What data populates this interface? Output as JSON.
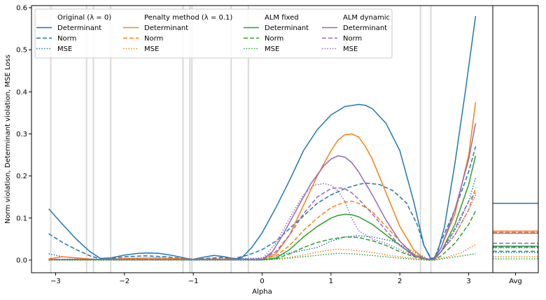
{
  "chart_data": {
    "type": "line",
    "xlabel": "Alpha",
    "ylabel": "Norm violation, Determinant violation, MSE Loss",
    "xlim": [
      -3.35,
      3.35
    ],
    "ylim": [
      -0.03,
      0.605
    ],
    "xticks": [
      -3,
      -2,
      -1,
      0,
      1,
      2,
      3
    ],
    "xtick_labels": [
      "−3",
      "−2",
      "−1",
      "0",
      "1",
      "2",
      "3"
    ],
    "yticks": [
      0.0,
      0.1,
      0.2,
      0.3,
      0.4,
      0.5,
      0.6
    ],
    "ytick_labels": [
      "0.0",
      "0.1",
      "0.2",
      "0.3",
      "0.4",
      "0.5",
      "0.6"
    ],
    "avg_panel_label": "Avg",
    "grey_vlines": [
      -3.07,
      -2.55,
      -2.45,
      -2.2,
      -1.15,
      -1.05,
      -1.02,
      -0.45,
      -0.2,
      2.3,
      2.45
    ],
    "legend": {
      "placement": "top-left",
      "groups": [
        {
          "title": "Original (λ = 0)",
          "color": "#1f77b4",
          "entries": [
            {
              "label": "Determinant",
              "style": "solid"
            },
            {
              "label": "Norm",
              "style": "dashed"
            },
            {
              "label": "MSE",
              "style": "dotted"
            }
          ]
        },
        {
          "title": "Penalty method (λ = 0.1)",
          "color": "#ff7f0e",
          "entries": [
            {
              "label": "Determinant",
              "style": "solid"
            },
            {
              "label": "Norm",
              "style": "dashed"
            },
            {
              "label": "MSE",
              "style": "dotted"
            }
          ]
        },
        {
          "title": "ALM fixed",
          "color": "#2ca02c",
          "entries": [
            {
              "label": "Determinant",
              "style": "solid"
            },
            {
              "label": "Norm",
              "style": "dashed"
            },
            {
              "label": "MSE",
              "style": "dotted"
            }
          ]
        },
        {
          "title": "ALM dynamic",
          "color": "#9467bd",
          "entries": [
            {
              "label": "Determinant",
              "style": "solid"
            },
            {
              "label": "Norm",
              "style": "dashed"
            },
            {
              "label": "MSE",
              "style": "dotted"
            }
          ]
        }
      ]
    },
    "series": [
      {
        "group": "Original (λ = 0)",
        "metric": "Determinant",
        "color": "#1f77b4",
        "style": "solid",
        "avg": 0.135,
        "x": [
          -3.1,
          -2.9,
          -2.7,
          -2.5,
          -2.35,
          -2.2,
          -2.0,
          -1.8,
          -1.65,
          -1.5,
          -1.3,
          -1.1,
          -1.0,
          -0.85,
          -0.7,
          -0.55,
          -0.4,
          -0.3,
          -0.15,
          0.0,
          0.2,
          0.4,
          0.6,
          0.8,
          1.0,
          1.2,
          1.4,
          1.5,
          1.6,
          1.8,
          2.0,
          2.2,
          2.35,
          2.45,
          2.5,
          2.55,
          2.65,
          2.8,
          2.95,
          3.1
        ],
        "y": [
          0.122,
          0.085,
          0.05,
          0.02,
          0.004,
          0.005,
          0.012,
          0.016,
          0.017,
          0.016,
          0.011,
          0.004,
          0.002,
          0.007,
          0.011,
          0.008,
          0.003,
          0.005,
          0.03,
          0.065,
          0.125,
          0.19,
          0.26,
          0.31,
          0.345,
          0.365,
          0.37,
          0.368,
          0.36,
          0.325,
          0.26,
          0.14,
          0.035,
          0.003,
          0.006,
          0.02,
          0.08,
          0.23,
          0.4,
          0.58
        ]
      },
      {
        "group": "Original (λ = 0)",
        "metric": "Norm",
        "color": "#1f77b4",
        "style": "dashed",
        "avg": 0.031,
        "x": [
          -3.1,
          -2.9,
          -2.7,
          -2.5,
          -2.35,
          -2.2,
          -2.0,
          -1.7,
          -1.4,
          -1.1,
          -1.0,
          -0.8,
          -0.6,
          -0.4,
          -0.2,
          0.0,
          0.2,
          0.4,
          0.6,
          0.8,
          1.0,
          1.2,
          1.4,
          1.5,
          1.7,
          1.9,
          2.1,
          2.25,
          2.35,
          2.45,
          2.5,
          2.6,
          2.8,
          3.0,
          3.1
        ],
        "y": [
          0.063,
          0.042,
          0.025,
          0.01,
          0.003,
          0.004,
          0.008,
          0.01,
          0.008,
          0.003,
          0.002,
          0.004,
          0.006,
          0.004,
          0.012,
          0.025,
          0.045,
          0.075,
          0.105,
          0.135,
          0.155,
          0.17,
          0.18,
          0.183,
          0.18,
          0.165,
          0.135,
          0.085,
          0.035,
          0.005,
          0.004,
          0.045,
          0.12,
          0.21,
          0.27
        ]
      },
      {
        "group": "Original (λ = 0)",
        "metric": "MSE",
        "color": "#1f77b4",
        "style": "dotted",
        "avg": 0.018,
        "x": [
          -3.1,
          -2.9,
          -2.6,
          -2.35,
          -2.0,
          -1.5,
          -1.0,
          -0.5,
          0.0,
          0.2,
          0.5,
          0.8,
          1.0,
          1.2,
          1.4,
          1.6,
          1.9,
          2.2,
          2.4,
          2.5,
          2.65,
          2.85,
          3.0,
          3.1
        ],
        "y": [
          0.015,
          0.008,
          0.003,
          0.001,
          0.002,
          0.002,
          0.001,
          0.002,
          0.005,
          0.01,
          0.02,
          0.03,
          0.045,
          0.055,
          0.058,
          0.055,
          0.045,
          0.02,
          0.003,
          0.003,
          0.03,
          0.085,
          0.14,
          0.195
        ]
      },
      {
        "group": "Penalty method (λ = 0.1)",
        "metric": "Determinant",
        "color": "#ff7f0e",
        "style": "solid",
        "avg": 0.069,
        "x": [
          -3.1,
          -2.9,
          -2.6,
          -2.35,
          -2.0,
          -1.5,
          -1.0,
          -0.5,
          -0.2,
          0.0,
          0.2,
          0.4,
          0.6,
          0.8,
          1.0,
          1.1,
          1.2,
          1.3,
          1.4,
          1.5,
          1.6,
          1.8,
          2.0,
          2.2,
          2.35,
          2.45,
          2.5,
          2.6,
          2.8,
          3.0,
          3.1
        ],
        "y": [
          0.003,
          0.008,
          0.004,
          0.001,
          0.004,
          0.005,
          0.002,
          0.003,
          0.001,
          0.002,
          0.015,
          0.06,
          0.13,
          0.2,
          0.26,
          0.285,
          0.298,
          0.3,
          0.293,
          0.27,
          0.24,
          0.16,
          0.08,
          0.025,
          0.004,
          0.001,
          0.003,
          0.03,
          0.11,
          0.25,
          0.375
        ]
      },
      {
        "group": "Penalty method (λ = 0.1)",
        "metric": "Norm",
        "color": "#ff7f0e",
        "style": "dashed",
        "avg": 0.066,
        "x": [
          -3.1,
          -2.9,
          -2.5,
          -2.0,
          -1.5,
          -1.0,
          -0.5,
          0.0,
          0.2,
          0.4,
          0.6,
          0.8,
          1.0,
          1.2,
          1.3,
          1.4,
          1.6,
          1.8,
          2.0,
          2.2,
          2.4,
          2.5,
          2.6,
          2.8,
          3.0,
          3.1
        ],
        "y": [
          0.001,
          0.002,
          0.001,
          0.002,
          0.002,
          0.001,
          0.002,
          0.002,
          0.01,
          0.035,
          0.07,
          0.1,
          0.125,
          0.138,
          0.14,
          0.135,
          0.115,
          0.08,
          0.045,
          0.015,
          0.002,
          0.002,
          0.02,
          0.06,
          0.12,
          0.172
        ]
      },
      {
        "group": "Penalty method (λ = 0.1)",
        "metric": "MSE",
        "color": "#ff7f0e",
        "style": "dotted",
        "avg": 0.008,
        "x": [
          -3.1,
          -2.5,
          -2.0,
          -1.5,
          -1.0,
          -0.5,
          0.0,
          0.3,
          0.6,
          0.9,
          1.1,
          1.3,
          1.6,
          1.9,
          2.2,
          2.4,
          2.5,
          2.7,
          2.9,
          3.1
        ],
        "y": [
          0.001,
          0.001,
          0.001,
          0.001,
          0.001,
          0.001,
          0.001,
          0.004,
          0.012,
          0.022,
          0.026,
          0.024,
          0.018,
          0.01,
          0.004,
          0.001,
          0.001,
          0.008,
          0.018,
          0.037
        ]
      },
      {
        "group": "ALM fixed",
        "metric": "Determinant",
        "color": "#2ca02c",
        "style": "solid",
        "avg": 0.033,
        "x": [
          -3.1,
          -2.5,
          -2.0,
          -1.5,
          -1.0,
          -0.5,
          0.0,
          0.2,
          0.4,
          0.6,
          0.8,
          1.0,
          1.1,
          1.2,
          1.3,
          1.4,
          1.6,
          1.8,
          2.0,
          2.2,
          2.4,
          2.5,
          2.6,
          2.8,
          3.0,
          3.1
        ],
        "y": [
          0.001,
          0.001,
          0.001,
          0.001,
          0.001,
          0.001,
          0.001,
          0.005,
          0.025,
          0.055,
          0.08,
          0.1,
          0.106,
          0.109,
          0.108,
          0.103,
          0.085,
          0.06,
          0.035,
          0.012,
          0.002,
          0.001,
          0.02,
          0.085,
          0.18,
          0.248
        ]
      },
      {
        "group": "ALM fixed",
        "metric": "Norm",
        "color": "#2ca02c",
        "style": "dashed",
        "avg": 0.021,
        "x": [
          -3.1,
          -2.5,
          -2.0,
          -1.5,
          -1.0,
          -0.5,
          0.0,
          0.2,
          0.4,
          0.6,
          0.8,
          1.0,
          1.2,
          1.4,
          1.6,
          1.8,
          2.0,
          2.2,
          2.4,
          2.5,
          2.6,
          2.8,
          3.0,
          3.1
        ],
        "y": [
          0.001,
          0.001,
          0.001,
          0.001,
          0.001,
          0.001,
          0.001,
          0.003,
          0.015,
          0.03,
          0.042,
          0.05,
          0.055,
          0.054,
          0.046,
          0.035,
          0.02,
          0.008,
          0.001,
          0.001,
          0.01,
          0.04,
          0.085,
          0.117
        ]
      },
      {
        "group": "ALM fixed",
        "metric": "MSE",
        "color": "#2ca02c",
        "style": "dotted",
        "avg": 0.003,
        "x": [
          -3.1,
          -2.5,
          -2.0,
          -1.5,
          -1.0,
          -0.5,
          0.0,
          0.3,
          0.6,
          0.9,
          1.1,
          1.3,
          1.6,
          1.9,
          2.2,
          2.4,
          2.5,
          2.7,
          2.9,
          3.1
        ],
        "y": [
          0.0,
          0.0,
          0.0,
          0.0,
          0.0,
          0.0,
          0.0,
          0.003,
          0.008,
          0.013,
          0.016,
          0.015,
          0.011,
          0.006,
          0.002,
          0.0,
          0.0,
          0.005,
          0.01,
          0.015
        ]
      },
      {
        "group": "ALM dynamic",
        "metric": "Determinant",
        "color": "#9467bd",
        "style": "solid",
        "avg": 0.064,
        "x": [
          -3.1,
          -2.5,
          -2.0,
          -1.5,
          -1.0,
          -0.5,
          0.0,
          0.15,
          0.3,
          0.5,
          0.7,
          0.9,
          1.0,
          1.1,
          1.2,
          1.3,
          1.4,
          1.6,
          1.8,
          2.0,
          2.2,
          2.4,
          2.5,
          2.6,
          2.8,
          3.0,
          3.1
        ],
        "y": [
          0.001,
          0.002,
          0.001,
          0.001,
          0.001,
          0.001,
          0.001,
          0.02,
          0.06,
          0.12,
          0.18,
          0.225,
          0.24,
          0.248,
          0.245,
          0.232,
          0.21,
          0.155,
          0.095,
          0.045,
          0.012,
          0.002,
          0.001,
          0.03,
          0.12,
          0.24,
          0.325
        ]
      },
      {
        "group": "ALM dynamic",
        "metric": "Norm",
        "color": "#9467bd",
        "style": "dashed",
        "avg": 0.04,
        "x": [
          -3.1,
          -2.5,
          -2.0,
          -1.5,
          -1.0,
          -0.5,
          0.0,
          0.2,
          0.4,
          0.6,
          0.8,
          1.0,
          1.1,
          1.2,
          1.3,
          1.4,
          1.6,
          1.8,
          2.0,
          2.2,
          2.4,
          2.5,
          2.6,
          2.8,
          3.0,
          3.1
        ],
        "y": [
          0.002,
          0.002,
          0.002,
          0.002,
          0.002,
          0.002,
          0.003,
          0.02,
          0.06,
          0.11,
          0.15,
          0.17,
          0.172,
          0.17,
          0.16,
          0.145,
          0.11,
          0.07,
          0.035,
          0.01,
          0.002,
          0.002,
          0.02,
          0.075,
          0.14,
          0.16
        ]
      },
      {
        "group": "ALM dynamic",
        "metric": "MSE",
        "color": "#9467bd",
        "style": "dotted",
        "avg": 0.029,
        "x": [
          -3.1,
          -2.5,
          -2.0,
          -1.5,
          -1.0,
          -0.5,
          0.0,
          0.2,
          0.4,
          0.6,
          0.75,
          0.9,
          1.0,
          1.1,
          1.2,
          1.3,
          1.4,
          1.6,
          1.8,
          2.0,
          2.2,
          2.4,
          2.5,
          2.6,
          2.8,
          3.0,
          3.1
        ],
        "y": [
          0.002,
          0.002,
          0.002,
          0.002,
          0.002,
          0.002,
          0.003,
          0.04,
          0.1,
          0.155,
          0.178,
          0.182,
          0.178,
          0.165,
          0.14,
          0.1,
          0.07,
          0.05,
          0.04,
          0.025,
          0.01,
          0.002,
          0.002,
          0.02,
          0.06,
          0.12,
          0.155
        ]
      }
    ]
  }
}
